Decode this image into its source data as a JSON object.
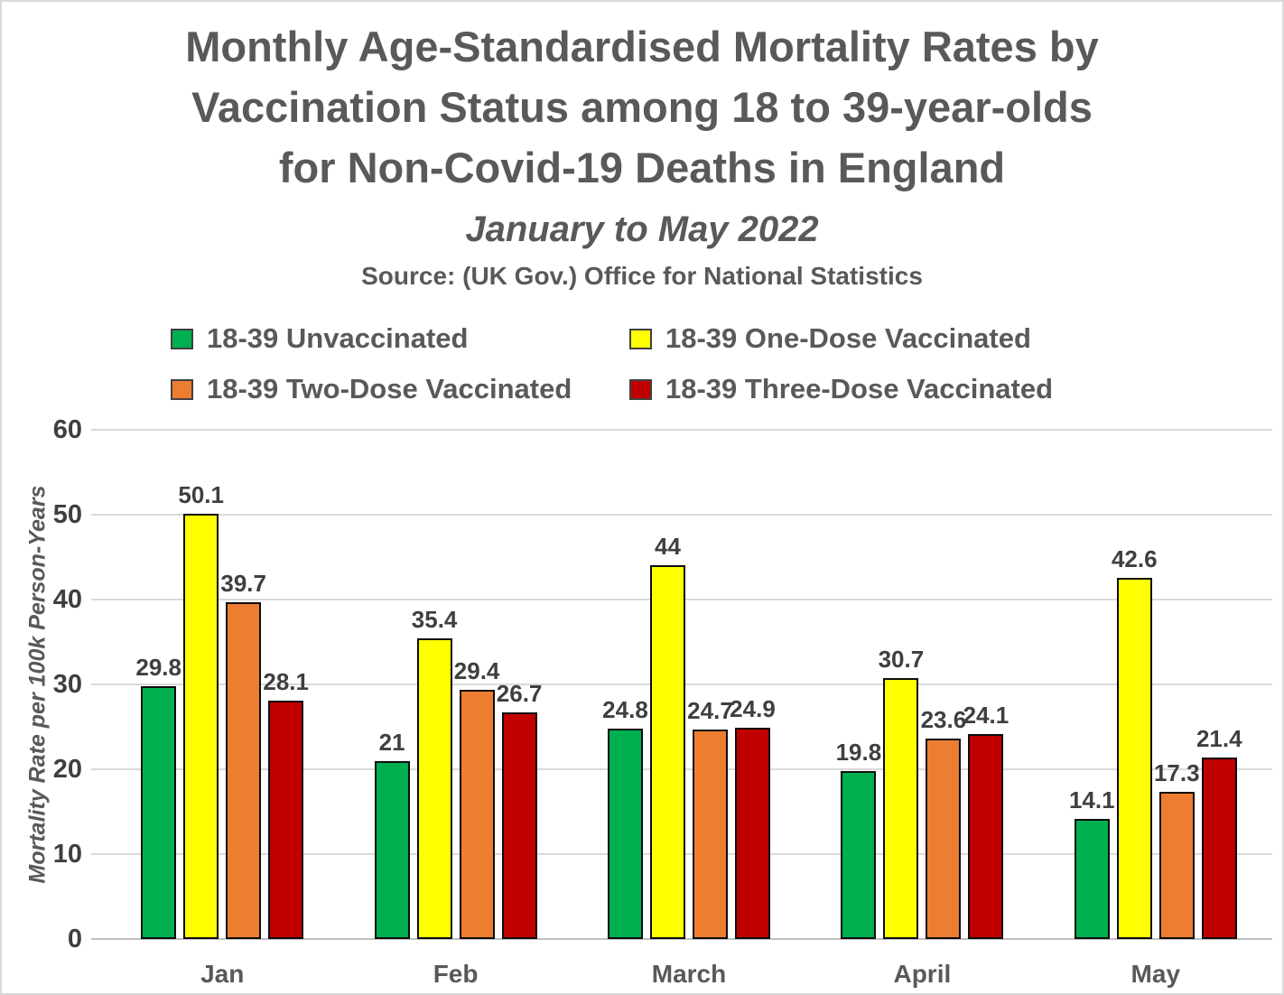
{
  "header": {
    "title_lines": [
      "Monthly Age-Standardised Mortality Rates by",
      "Vaccination Status among 18 to 39-year-olds",
      "for Non-Covid-19 Deaths in England"
    ],
    "subtitle": "January to May 2022",
    "source": "Source: (UK Gov.) Office for National Statistics"
  },
  "chart_data": {
    "type": "bar",
    "title": "Monthly Age-Standardised Mortality Rates by Vaccination Status among 18 to 39-year-olds for Non-Covid-19 Deaths in England",
    "subtitle": "January to May 2022",
    "source": "Source: (UK Gov.) Office for National Statistics",
    "categories": [
      "Jan",
      "Feb",
      "March",
      "April",
      "May"
    ],
    "series": [
      {
        "name": "18-39 Unvaccinated",
        "color": "#00B050",
        "values": [
          29.8,
          21,
          24.8,
          19.8,
          14.1
        ],
        "labels": [
          "29.8",
          "21",
          "24.8",
          "19.8",
          "14.1"
        ]
      },
      {
        "name": "18-39 One-Dose Vaccinated",
        "color": "#FFFF00",
        "values": [
          50.1,
          35.4,
          44,
          30.7,
          42.6
        ],
        "labels": [
          "50.1",
          "35.4",
          "44",
          "30.7",
          "42.6"
        ]
      },
      {
        "name": "18-39 Two-Dose Vaccinated",
        "color": "#ED7D31",
        "values": [
          39.7,
          29.4,
          24.7,
          23.6,
          17.3
        ],
        "labels": [
          "39.7",
          "29.4",
          "24.7",
          "23.6",
          "17.3"
        ]
      },
      {
        "name": "18-39 Three-Dose Vaccinated",
        "color": "#C00000",
        "values": [
          28.1,
          26.7,
          24.9,
          24.1,
          21.4
        ],
        "labels": [
          "28.1",
          "26.7",
          "24.9",
          "24.1",
          "21.4"
        ]
      }
    ],
    "ylabel": "Mortality Rate per 100k Person-Years",
    "ylim": [
      0,
      60
    ],
    "yticks": [
      0,
      10,
      20,
      30,
      40,
      50,
      60
    ],
    "grid": true,
    "legend_position": "top",
    "bar_labels": true,
    "colors": {
      "gridline": "#D9D9D9",
      "axis_line": "#BFBFBF",
      "bar_border": "#0D0D0D",
      "text_gray": "#595959",
      "value_text": "#3F3F3F"
    }
  }
}
